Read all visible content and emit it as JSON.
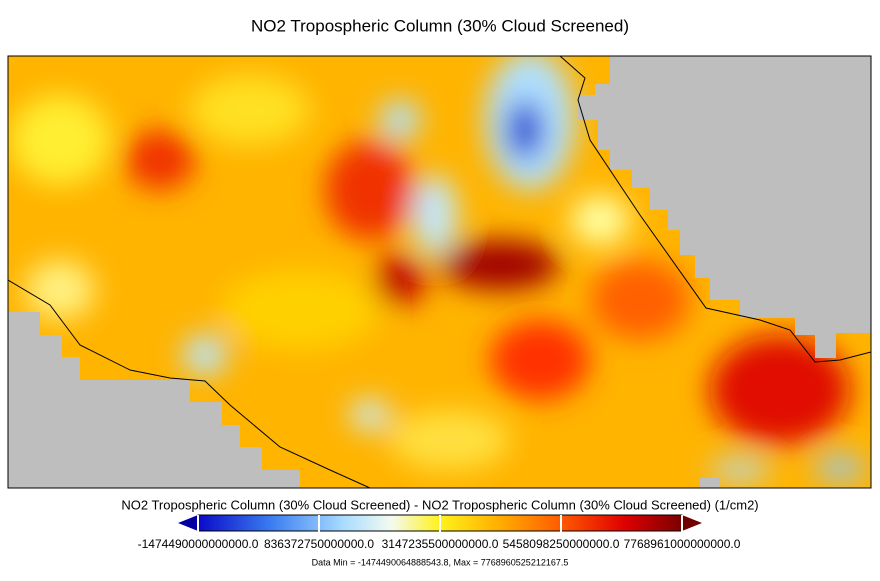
{
  "title": "NO2 Tropospheric Column (30% Cloud Screened)",
  "colorbar": {
    "label": "NO2 Tropospheric Column (30% Cloud Screened) - NO2 Tropospheric Column (30% Cloud Screened) (1/cm2)",
    "ticks": [
      "-1474490000000000.0",
      "836372750000000.0",
      "3147235500000000.0",
      "5458098250000000.0",
      "7768961000000000.0"
    ]
  },
  "data_range": "Data Min = -1474490064888543.8, Max = 7768960525212167.5"
}
